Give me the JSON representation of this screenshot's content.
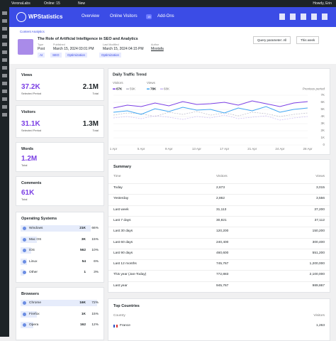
{
  "admin_bar": {
    "site": "VeronaLabs",
    "online": "Online: 15",
    "new": "New",
    "greeting": "Howdy, Erin"
  },
  "header": {
    "logo": "WPStatistics",
    "nav": [
      "Overview",
      "Online Visitors",
      "Add-Ons"
    ],
    "online_badge": "15"
  },
  "breadcrumb": "Content Analytics",
  "post": {
    "title": "The Role of Artificial Intelligence in SEO and Analytics",
    "meta": [
      {
        "label": "Type",
        "value": "Post"
      },
      {
        "label": "Published",
        "value": "March 15, 2024 03:01 PM"
      },
      {
        "label": "Last Modified",
        "value": "March 15, 2024 04:15 PM"
      },
      {
        "label": "Author",
        "value": "Mostafa"
      }
    ],
    "tags": [
      "AI",
      "SEO",
      "Optimization",
      "Optimization"
    ]
  },
  "filters": {
    "query": "Query parameter: All",
    "period": "This week"
  },
  "stats": [
    {
      "title": "Views",
      "selected": "37.2K",
      "selected_label": "Selected Period",
      "total": "2.1M",
      "total_label": "Total"
    },
    {
      "title": "Visitors",
      "selected": "31.1K",
      "selected_label": "Selected Period",
      "total": "1.3M",
      "total_label": "Total"
    },
    {
      "title": "Words",
      "total": "1.2M",
      "total_label": "Total"
    },
    {
      "title": "Comments",
      "total": "61K",
      "total_label": "Total"
    }
  ],
  "operating_systems": {
    "title": "Operating Systems",
    "rows": [
      {
        "name": "Windows",
        "count": "21K",
        "share": 66,
        "share_label": "66%"
      },
      {
        "name": "Mac OS",
        "count": "3K",
        "share": 15,
        "share_label": "15%"
      },
      {
        "name": "iOS",
        "count": "562",
        "share": 10,
        "share_label": "10%"
      },
      {
        "name": "Linux",
        "count": "54",
        "share": 6,
        "share_label": "6%"
      },
      {
        "name": "Other",
        "count": "1",
        "share": 3,
        "share_label": "3%"
      }
    ]
  },
  "browsers": {
    "title": "Browsers",
    "rows": [
      {
        "name": "Chrome",
        "count": "16K",
        "share": 72,
        "share_label": "72%"
      },
      {
        "name": "Firefox",
        "count": "1K",
        "share": 15,
        "share_label": "15%"
      },
      {
        "name": "Opera",
        "count": "162",
        "share": 12,
        "share_label": "12%"
      }
    ]
  },
  "chart_data": {
    "type": "line",
    "title": "Daily Traffic Trend",
    "previous_label": "Previous period",
    "categories": [
      "1 Apr",
      null,
      "5 Apr",
      null,
      "9 Apr",
      null,
      "13 Apr",
      null,
      "17 Apr",
      null,
      "21 Apr",
      null,
      "24 Apr",
      null,
      "28 Apr"
    ],
    "series": [
      {
        "name": "Visitors",
        "color": "#7b3fe4",
        "previous_color": "#b9b9c6",
        "total": "67K",
        "previous_total": "59K",
        "values": [
          5200,
          5600,
          5400,
          5900,
          5500,
          6100,
          5700,
          5800,
          6000,
          5600,
          6200,
          5800,
          5400,
          5900,
          6100
        ],
        "previous_values": [
          4200,
          4500,
          4400,
          4000,
          4600,
          4300,
          4700,
          4200,
          4500,
          4100,
          4600,
          4400,
          4000,
          4300,
          4500
        ]
      },
      {
        "name": "Views",
        "color": "#3fa6f2",
        "previous_color": "#c9b8f2",
        "total": "78K",
        "previous_total": "68K",
        "values": [
          4600,
          4800,
          4300,
          5100,
          4700,
          5300,
          4900,
          5000,
          4500,
          5200,
          4800,
          5400,
          4600,
          5000,
          5200
        ],
        "previous_values": [
          3800,
          4000,
          3700,
          4100,
          3900,
          3600,
          4000,
          3800,
          4200,
          3700,
          3900,
          4100,
          3500,
          3800,
          4000
        ]
      }
    ],
    "ylim": [
      0,
      7000
    ],
    "yticks": [
      0,
      {
        "value": 1000,
        "label": "1K"
      },
      {
        "value": 2000,
        "label": "2K"
      },
      {
        "value": 3000,
        "label": "3K"
      },
      {
        "value": 4000,
        "label": "4K"
      },
      {
        "value": 5000,
        "label": "5K"
      },
      {
        "value": 6000,
        "label": "6K"
      },
      {
        "value": 7000,
        "label": "7K"
      }
    ],
    "grid": true
  },
  "summary": {
    "title": "Summary",
    "columns": [
      "Time",
      "Visitors",
      "Views"
    ],
    "rows": [
      [
        "Today",
        "2,673",
        "3,015"
      ],
      [
        "Yesterday",
        "2,862",
        "3,556"
      ],
      [
        "Last week",
        "31,113",
        "37,200"
      ],
      [
        "Last 7 days",
        "30,821",
        "37,112"
      ],
      [
        "Last 30 days",
        "120,200",
        "150,200"
      ],
      [
        "Last 60 days",
        "240,400",
        "300,400"
      ],
      [
        "Last 90 days",
        "460,600",
        "551,200"
      ],
      [
        "Last 12 months",
        "745,767",
        "1,200,000"
      ],
      [
        "This year (Jan-Today)",
        "772,883",
        "2,100,000"
      ],
      [
        "Last year",
        "945,767",
        "989,867"
      ]
    ]
  },
  "top_countries": {
    "title": "Top Countries",
    "columns": [
      "Country",
      "Visitors"
    ],
    "rows": [
      [
        "France",
        "1,263"
      ]
    ]
  }
}
